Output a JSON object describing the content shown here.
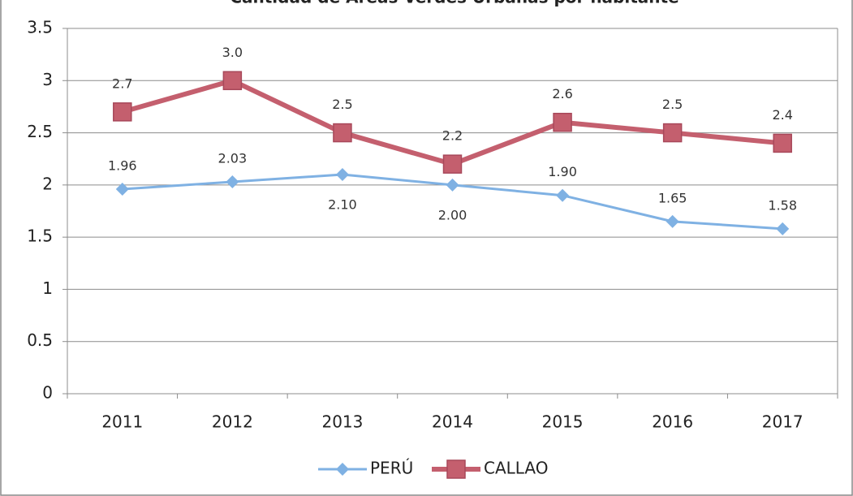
{
  "chart_data": {
    "type": "line",
    "title": "Cantidad de Áreas Verdes Urbanas por habitante",
    "categories": [
      "2011",
      "2012",
      "2013",
      "2014",
      "2015",
      "2016",
      "2017"
    ],
    "series": [
      {
        "name": "PERÚ",
        "color": "#7fb1e3",
        "values": [
          1.96,
          2.03,
          2.1,
          2.0,
          1.9,
          1.65,
          1.58
        ],
        "value_labels": [
          "1.96",
          "2.03",
          "2.10",
          "2.00",
          "1.90",
          "1.65",
          "1.58"
        ]
      },
      {
        "name": "CALLAO",
        "color": "#c45f6e",
        "values": [
          2.7,
          3.0,
          2.5,
          2.2,
          2.6,
          2.5,
          2.4
        ],
        "value_labels": [
          "2.7",
          "3.0",
          "2.5",
          "2.2",
          "2.6",
          "2.5",
          "2.4"
        ]
      }
    ],
    "ylim": [
      0,
      3.5
    ],
    "yticks": [
      0,
      0.5,
      1,
      1.5,
      2,
      2.5,
      3,
      3.5
    ],
    "grid": true,
    "legend": "bottom"
  }
}
